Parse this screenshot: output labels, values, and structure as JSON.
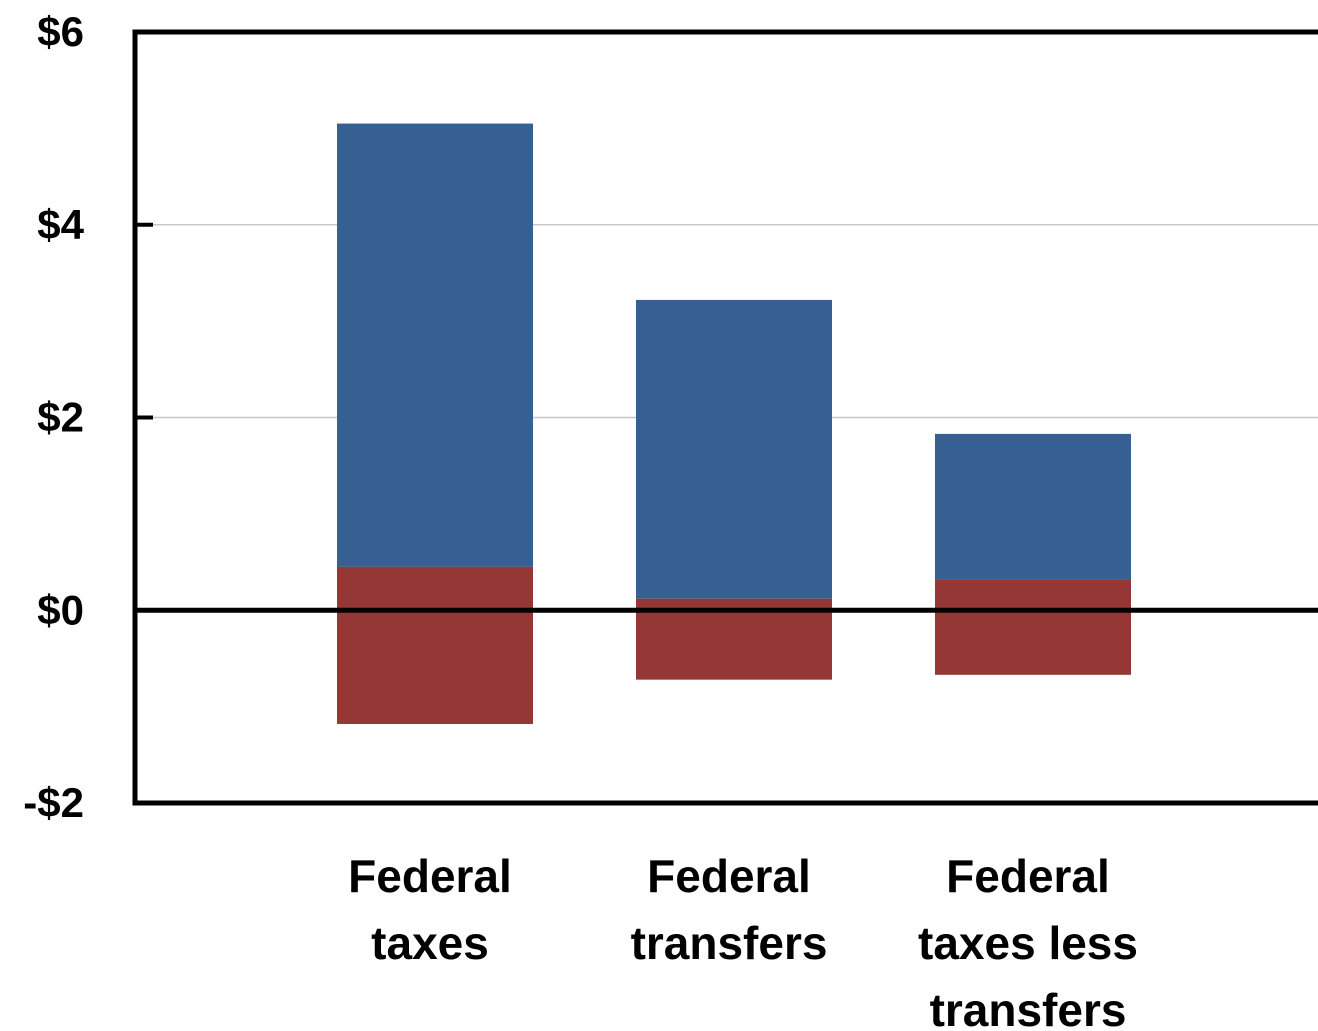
{
  "chart_data": {
    "type": "bar",
    "stacked_range": true,
    "categories": [
      [
        "Federal",
        "taxes"
      ],
      [
        "Federal",
        "transfers"
      ],
      [
        "Federal",
        "taxes less",
        "transfers"
      ]
    ],
    "series": [
      {
        "values": [
          [
            0.45,
            5.05
          ],
          [
            0.12,
            3.22
          ],
          [
            0.32,
            1.83
          ]
        ],
        "color": "#376092"
      },
      {
        "values": [
          [
            -1.18,
            0.45
          ],
          [
            -0.72,
            0.12
          ],
          [
            -0.67,
            0.32
          ]
        ],
        "color": "#953735"
      }
    ],
    "ylim": [
      -2,
      6
    ],
    "yticks": [
      -2,
      0,
      2,
      4,
      6
    ],
    "ytick_labels": [
      "-$2",
      "$0",
      "$2",
      "$4",
      "$6"
    ],
    "grid": true,
    "title": "",
    "xlabel": "",
    "ylabel": ""
  }
}
